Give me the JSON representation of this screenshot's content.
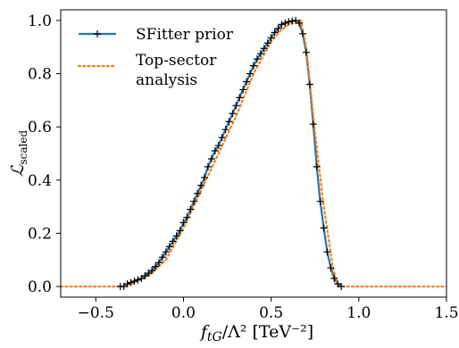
{
  "chart_data": {
    "type": "line",
    "xlabel": "f_tG/Λ² [TeV⁻²]",
    "ylabel": "L_scaled",
    "xlim": [
      -0.7,
      1.5
    ],
    "ylim": [
      -0.04,
      1.04
    ],
    "x_ticks": [
      -0.5,
      0.0,
      0.5,
      1.0,
      1.5
    ],
    "x_tick_labels": [
      "−0.5",
      "0.0",
      "0.5",
      "1.0",
      "1.5"
    ],
    "y_ticks": [
      0.0,
      0.2,
      0.4,
      0.6,
      0.8,
      1.0
    ],
    "y_tick_labels": [
      "0.0",
      "0.2",
      "0.4",
      "0.6",
      "0.8",
      "1.0"
    ],
    "grid": false,
    "legend_position": "top-left",
    "series": [
      {
        "name": "SFitter prior",
        "color": "#1f77b4",
        "style": "solid",
        "marker": "plus",
        "x": [
          -0.36,
          -0.34,
          -0.32,
          -0.3,
          -0.28,
          -0.26,
          -0.24,
          -0.22,
          -0.2,
          -0.18,
          -0.16,
          -0.14,
          -0.12,
          -0.1,
          -0.08,
          -0.06,
          -0.04,
          -0.02,
          0.0,
          0.02,
          0.04,
          0.06,
          0.08,
          0.1,
          0.12,
          0.14,
          0.16,
          0.18,
          0.2,
          0.22,
          0.24,
          0.26,
          0.28,
          0.3,
          0.32,
          0.34,
          0.36,
          0.38,
          0.4,
          0.42,
          0.44,
          0.46,
          0.48,
          0.5,
          0.52,
          0.54,
          0.56,
          0.58,
          0.6,
          0.62,
          0.64,
          0.66,
          0.68,
          0.7,
          0.72,
          0.74,
          0.76,
          0.78,
          0.8,
          0.82,
          0.84,
          0.86,
          0.88,
          0.9
        ],
        "y": [
          0.0,
          0.0,
          0.01,
          0.015,
          0.02,
          0.025,
          0.03,
          0.04,
          0.05,
          0.06,
          0.075,
          0.09,
          0.11,
          0.13,
          0.15,
          0.17,
          0.19,
          0.21,
          0.24,
          0.26,
          0.29,
          0.32,
          0.35,
          0.38,
          0.41,
          0.45,
          0.48,
          0.51,
          0.53,
          0.56,
          0.59,
          0.62,
          0.65,
          0.68,
          0.71,
          0.74,
          0.77,
          0.8,
          0.83,
          0.855,
          0.875,
          0.895,
          0.915,
          0.935,
          0.955,
          0.97,
          0.985,
          0.99,
          0.995,
          0.998,
          1.0,
          0.99,
          0.95,
          0.88,
          0.76,
          0.61,
          0.45,
          0.32,
          0.22,
          0.13,
          0.07,
          0.03,
          0.01,
          0.0
        ]
      },
      {
        "name": "Top-sector analysis",
        "color": "#ff7f0e",
        "style": "dotted",
        "marker": "none",
        "x": [
          -0.7,
          -0.36,
          -0.3,
          -0.2,
          -0.1,
          0.0,
          0.1,
          0.2,
          0.3,
          0.4,
          0.5,
          0.55,
          0.6,
          0.65,
          0.67,
          0.7,
          0.75,
          0.8,
          0.85,
          0.88,
          0.9,
          1.5
        ],
        "y": [
          0.0,
          0.0,
          0.01,
          0.04,
          0.1,
          0.22,
          0.36,
          0.5,
          0.64,
          0.8,
          0.92,
          0.96,
          0.985,
          0.998,
          1.0,
          0.9,
          0.58,
          0.3,
          0.08,
          0.0,
          0.0,
          0.0
        ]
      }
    ],
    "legend": {
      "entries": [
        "SFitter prior",
        "Top-sector\nanalysis"
      ]
    }
  }
}
